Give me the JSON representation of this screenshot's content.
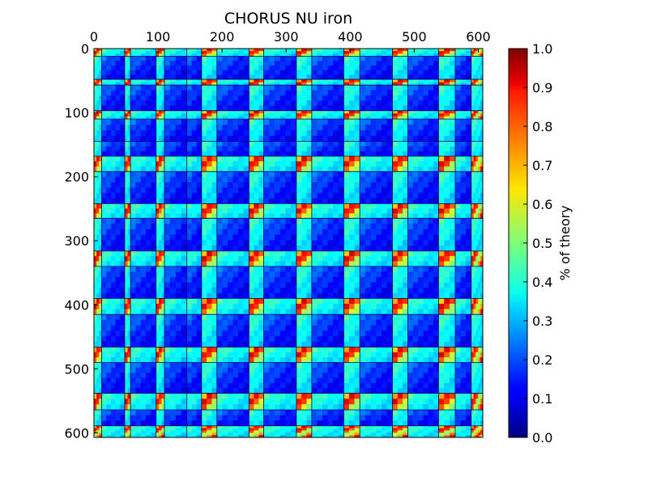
{
  "chart_data": {
    "type": "heatmap",
    "title": "CHORUS NU iron",
    "xlabel": "",
    "ylabel": "",
    "x_ticks": [
      "0",
      "100",
      "200",
      "300",
      "400",
      "500",
      "600"
    ],
    "y_ticks": [
      "0",
      "100",
      "200",
      "300",
      "400",
      "500",
      "600"
    ],
    "x_tick_values": [
      0,
      100,
      200,
      300,
      400,
      500,
      600
    ],
    "y_tick_values": [
      0,
      100,
      200,
      300,
      400,
      500,
      600
    ],
    "xlim": [
      0,
      607
    ],
    "ylim": [
      607,
      0
    ],
    "colorscale": "jet",
    "colorbar": {
      "label": "% of theory",
      "range": [
        0,
        1.0
      ],
      "ticks": [
        "0.0",
        "0.1",
        "0.2",
        "0.3",
        "0.4",
        "0.5",
        "0.6",
        "0.7",
        "0.8",
        "0.9",
        "1.0"
      ],
      "tick_values": [
        0,
        0.1,
        0.2,
        0.3,
        0.4,
        0.5,
        0.6,
        0.7,
        0.8,
        0.9,
        1.0
      ]
    },
    "block_boundaries": [
      0,
      12,
      48,
      57,
      97,
      110,
      145,
      168,
      192,
      242,
      265,
      316,
      340,
      390,
      415,
      466,
      490,
      538,
      564,
      589,
      607
    ],
    "bright_bands": [
      [
        0,
        12
      ],
      [
        48,
        57
      ],
      [
        97,
        110
      ],
      [
        168,
        192
      ],
      [
        242,
        265
      ],
      [
        316,
        340
      ],
      [
        390,
        415
      ],
      [
        466,
        490
      ],
      [
        538,
        564
      ],
      [
        589,
        607
      ]
    ],
    "value_range": [
      0.05,
      0.95
    ]
  }
}
